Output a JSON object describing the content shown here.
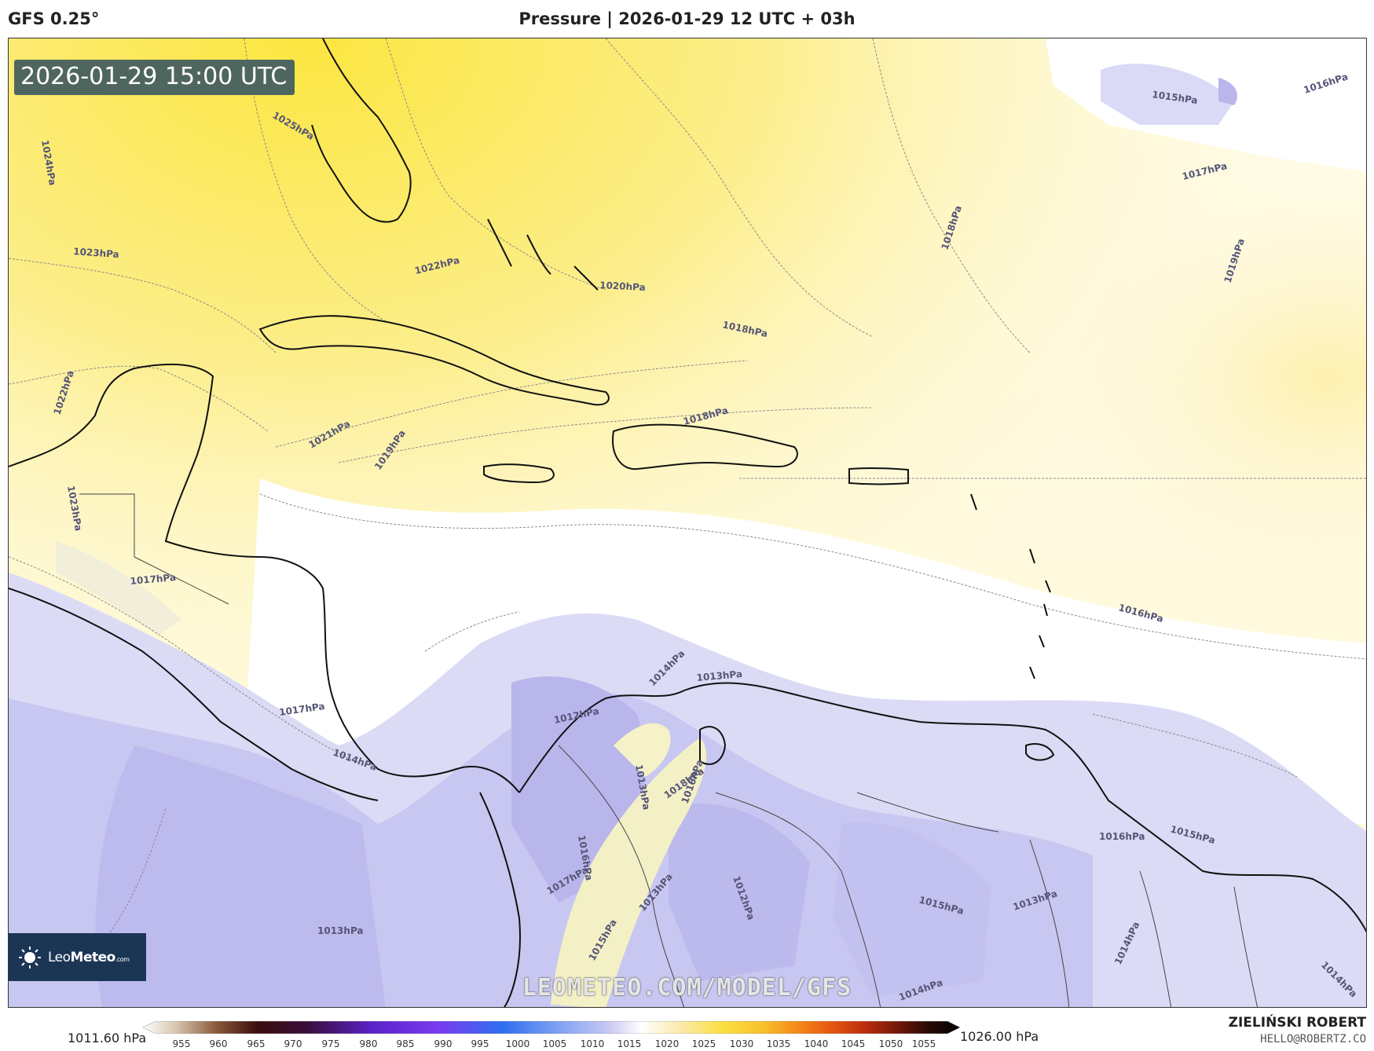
{
  "header": {
    "model": "GFS 0.25°",
    "title": "Pressure | 2026-01-29 12 UTC + 03h"
  },
  "timestamp": "2026-01-29 15:00 UTC",
  "isobar_labels": [
    "1025hPa",
    "1024hPa",
    "1023hPa",
    "1022hPa",
    "1022hPa",
    "1021hPa",
    "1020hPa",
    "1019hPa",
    "1018hPa",
    "1018hPa",
    "1018hPa",
    "1017hPa",
    "1016hPa",
    "1015hPa",
    "1016hPa",
    "1019hPa",
    "1023hPa",
    "1017hPa",
    "1017hPa",
    "1014hPa",
    "1013hPa",
    "1012hPa",
    "1014hPa",
    "1013hPa",
    "1013hPa",
    "1018hPa",
    "1016hPa",
    "1016hPa",
    "1017hPa",
    "1015hPa",
    "1013hPa",
    "1012hPa",
    "1015hPa",
    "1013hPa",
    "1014hPa",
    "1015hPa",
    "1014hPa",
    "1014hPa",
    "1016hPa"
  ],
  "logo": {
    "brand_light": "Leo",
    "brand_bold": "Meteo",
    "suffix": ".com"
  },
  "watermark": "LEOMETEO.COM/MODEL/GFS",
  "colorbar": {
    "min_label": "1011.60 hPa",
    "max_label": "1026.00 hPa",
    "ticks": [
      "955",
      "960",
      "965",
      "970",
      "975",
      "980",
      "985",
      "990",
      "995",
      "1000",
      "1005",
      "1010",
      "1015",
      "1020",
      "1025",
      "1030",
      "1035",
      "1040",
      "1045",
      "1050",
      "1055"
    ]
  },
  "author": {
    "name": "ZIELIŃSKI ROBERT",
    "email": "HELLO@ROBERTZ.CO"
  },
  "colors": {
    "high": "#fbe34a",
    "mid": "#fffbe0",
    "neutral": "#ffffff",
    "low": "#c9c9f2",
    "lowest": "#a9a6ea",
    "coastline": "#111111"
  }
}
